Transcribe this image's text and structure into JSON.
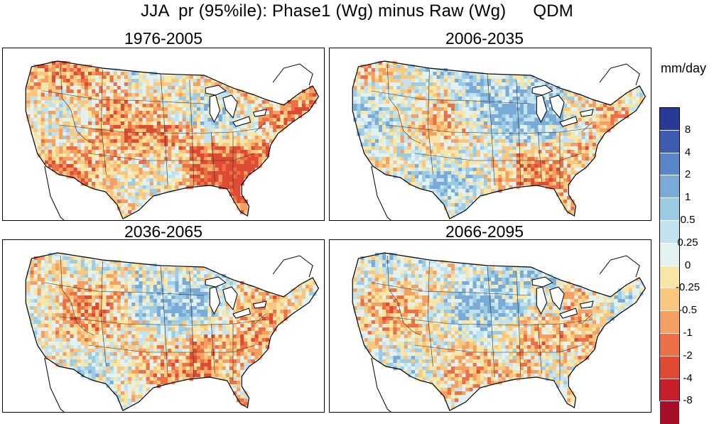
{
  "title": {
    "main": "JJA  pr (95%ile): Phase1 (Wg) minus Raw (Wg)",
    "method": "QDM"
  },
  "panels": [
    {
      "period": "1976-2005"
    },
    {
      "period": "2006-2035"
    },
    {
      "period": "2036-2065"
    },
    {
      "period": "2066-2095"
    }
  ],
  "colorbar": {
    "units": "mm/day",
    "ticks": [
      "8",
      "4",
      "2",
      "1",
      "0.5",
      "0.25",
      "0",
      "-0.25",
      "-0.5",
      "-1",
      "-2",
      "-4",
      "-8"
    ],
    "colors": [
      "#263a96",
      "#3f5db0",
      "#5a86c7",
      "#7aaad6",
      "#9ccbe4",
      "#c2e3ee",
      "#e4f1f1",
      "#f7e6a6",
      "#f9c77e",
      "#f4a063",
      "#ec7045",
      "#de4a32",
      "#c61f2c",
      "#a50f27"
    ]
  }
}
